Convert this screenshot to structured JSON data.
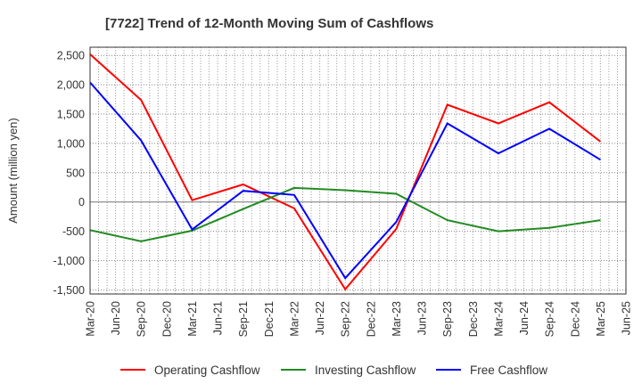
{
  "chart_data": {
    "type": "line",
    "title": "[7722]  Trend of 12-Month Moving Sum of Cashflows",
    "xlabel": "",
    "ylabel": "Amount (million yen)",
    "ylim": [
      -1570,
      2640
    ],
    "yticks": [
      2500,
      2000,
      1500,
      1000,
      500,
      0,
      -500,
      -1000,
      -1500
    ],
    "ytick_labels": [
      "2,500",
      "2,000",
      "1,500",
      "1,000",
      "500",
      "0",
      "-500",
      "-1,000",
      "-1,500"
    ],
    "x_tick_labels": [
      "Mar-20",
      "Jun-20",
      "Sep-20",
      "Dec-20",
      "Mar-21",
      "Jun-21",
      "Sep-21",
      "Dec-21",
      "Mar-22",
      "Jun-22",
      "Sep-22",
      "Dec-22",
      "Mar-23",
      "Jun-23",
      "Sep-23",
      "Dec-23",
      "Mar-24",
      "Jun-24",
      "Sep-24",
      "Dec-24",
      "Mar-25",
      "Jun-25"
    ],
    "x": [
      "Mar-20",
      "Sep-20",
      "Mar-21",
      "Sep-21",
      "Mar-22",
      "Sep-22",
      "Mar-23",
      "Sep-23",
      "Mar-24",
      "Sep-24",
      "Mar-25"
    ],
    "grid": true,
    "legend_position": "bottom",
    "series": [
      {
        "name": "Operating Cashflow",
        "color": "#ff0000",
        "values": [
          2520,
          1740,
          30,
          300,
          -110,
          -1490,
          -460,
          1660,
          1340,
          1700,
          1030
        ]
      },
      {
        "name": "Investing Cashflow",
        "color": "#228b22",
        "values": [
          -480,
          -670,
          -490,
          -120,
          240,
          200,
          140,
          -310,
          -500,
          -440,
          -310
        ]
      },
      {
        "name": "Free Cashflow",
        "color": "#0000ff",
        "values": [
          2040,
          1050,
          -470,
          190,
          120,
          -1300,
          -340,
          1340,
          830,
          1250,
          720
        ]
      }
    ]
  }
}
